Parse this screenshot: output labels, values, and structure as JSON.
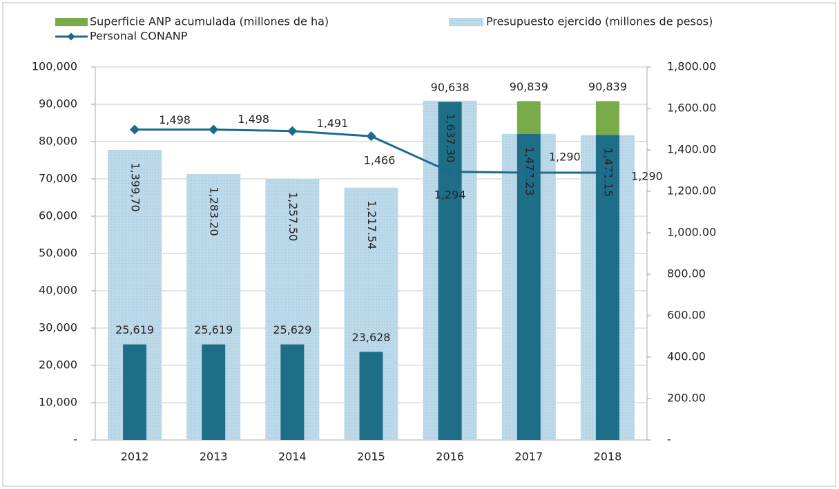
{
  "chart_data": {
    "type": "bar",
    "categories": [
      "2012",
      "2013",
      "2014",
      "2015",
      "2016",
      "2017",
      "2018"
    ],
    "series": [
      {
        "name": "Superficie ANP acumulada (millones de ha)",
        "type": "bar",
        "color": "#7aab4b",
        "overlap_color": "#1f6e88",
        "values": [
          25619,
          25619,
          25629,
          23628,
          90638,
          90839,
          90839
        ],
        "value_labels": [
          "25,619",
          "25,619",
          "25,629",
          "23,628",
          "90,638",
          "90,839",
          "90,839"
        ]
      },
      {
        "name": "Presupuesto ejercido (millones de pesos)",
        "type": "bar",
        "axis": "y2",
        "color": "#b8d6e8",
        "values": [
          1399.7,
          1283.2,
          1257.5,
          1217.54,
          1637.3,
          1477.23,
          1471.15
        ],
        "value_labels": [
          "1,399,70",
          "1,283.20",
          "1,257.50",
          "1,217.54",
          "1,637.30",
          "1,477.23",
          "1,471.15"
        ]
      },
      {
        "name": "Personal CONANP",
        "type": "line",
        "axis": "y2",
        "color": "#1c6a8c",
        "values": [
          1498,
          1498,
          1491,
          1466,
          1294,
          1290,
          1290
        ],
        "value_labels": [
          "1,498",
          "1,498",
          "1,491",
          "1,466",
          "1,294",
          "1,290",
          "1,290"
        ]
      }
    ],
    "ylim": [
      0,
      100000
    ],
    "yticks": [
      {
        "value": 0,
        "label": "-"
      },
      {
        "value": 10000,
        "label": "10,000"
      },
      {
        "value": 20000,
        "label": "20,000"
      },
      {
        "value": 30000,
        "label": "30,000"
      },
      {
        "value": 40000,
        "label": "40,000"
      },
      {
        "value": 50000,
        "label": "50,000"
      },
      {
        "value": 60000,
        "label": "60,000"
      },
      {
        "value": 70000,
        "label": "70,000"
      },
      {
        "value": 80000,
        "label": "80,000"
      },
      {
        "value": 90000,
        "label": "90,000"
      },
      {
        "value": 100000,
        "label": "100,000"
      }
    ],
    "y2lim": [
      0,
      1800
    ],
    "y2ticks": [
      {
        "value": 0,
        "label": "-"
      },
      {
        "value": 200,
        "label": "200.00"
      },
      {
        "value": 400,
        "label": "400.00"
      },
      {
        "value": 600,
        "label": "600.00"
      },
      {
        "value": 800,
        "label": "800.00"
      },
      {
        "value": 1000,
        "label": "1,000.00"
      },
      {
        "value": 1200,
        "label": "1,200.00"
      },
      {
        "value": 1400,
        "label": "1,400.00"
      },
      {
        "value": 1600,
        "label": "1,600.00"
      },
      {
        "value": 1800,
        "label": "1,800.00"
      }
    ],
    "grid": true
  }
}
